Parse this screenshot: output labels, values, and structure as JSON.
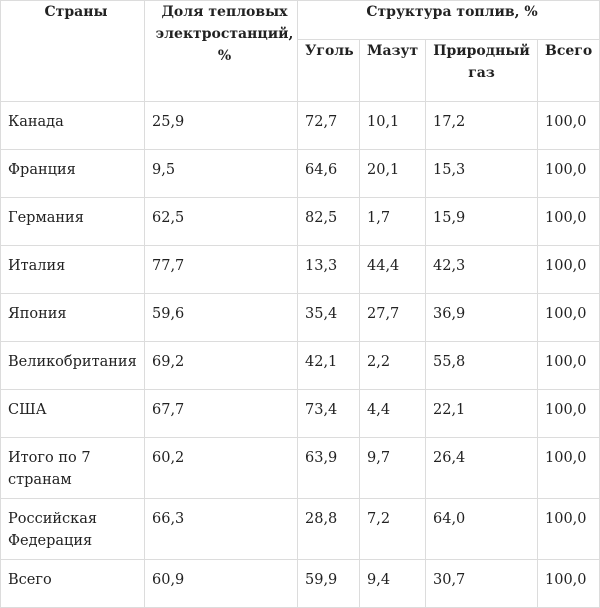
{
  "table": {
    "header": {
      "country": "Страны",
      "share": "Доля тепловых электростанций, %",
      "structure": "Структура топлив, %",
      "coal": "Уголь",
      "fuel_oil": "Мазут",
      "natural_gas": "Природный газ",
      "total": "Всего"
    },
    "rows": [
      {
        "country": "Канада",
        "share": "25,9",
        "coal": "72,7",
        "fuel_oil": "10,1",
        "gas": "17,2",
        "total": "100,0"
      },
      {
        "country": "Франция",
        "share": "9,5",
        "coal": "64,6",
        "fuel_oil": "20,1",
        "gas": "15,3",
        "total": "100,0"
      },
      {
        "country": "Германия",
        "share": "62,5",
        "coal": "82,5",
        "fuel_oil": "1,7",
        "gas": "15,9",
        "total": "100,0"
      },
      {
        "country": "Италия",
        "share": "77,7",
        "coal": "13,3",
        "fuel_oil": "44,4",
        "gas": "42,3",
        "total": "100,0"
      },
      {
        "country": "Япония",
        "share": "59,6",
        "coal": "35,4",
        "fuel_oil": "27,7",
        "gas": "36,9",
        "total": "100,0"
      },
      {
        "country": "Великобритания",
        "share": "69,2",
        "coal": "42,1",
        "fuel_oil": "2,2",
        "gas": "55,8",
        "total": "100,0"
      },
      {
        "country": "США",
        "share": "67,7",
        "coal": "73,4",
        "fuel_oil": "4,4",
        "gas": "22,1",
        "total": "100,0"
      },
      {
        "country": "Итого по 7 странам",
        "share": "60,2",
        "coal": "63,9",
        "fuel_oil": "9,7",
        "gas": "26,4",
        "total": "100,0"
      },
      {
        "country": "Российская Федерация",
        "share": "66,3",
        "coal": "28,8",
        "fuel_oil": "7,2",
        "gas": "64,0",
        "total": "100,0"
      },
      {
        "country": "Всего",
        "share": "60,9",
        "coal": "59,9",
        "fuel_oil": "9,4",
        "gas": "30,7",
        "total": "100,0"
      }
    ]
  }
}
